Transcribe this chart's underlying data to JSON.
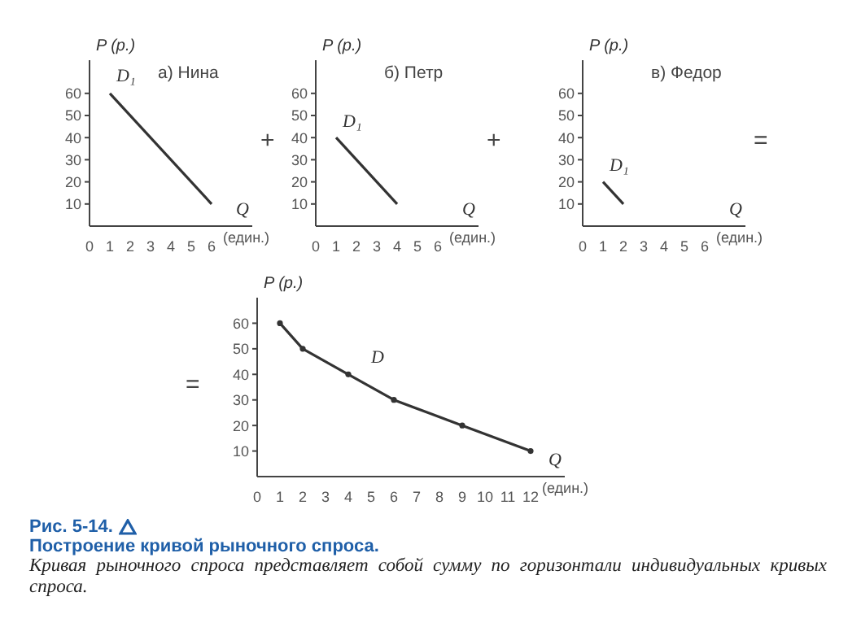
{
  "chart_data": [
    {
      "type": "line",
      "title": "а) Нина",
      "xlabel": "Q",
      "ylabel": "P (р.)",
      "x": [
        1,
        6
      ],
      "series": [
        {
          "name": "D₁",
          "color": "#333333",
          "values": [
            60,
            10
          ]
        }
      ],
      "xlim": [
        0,
        8
      ],
      "ylim": [
        0,
        75
      ],
      "xticks": [
        0,
        1,
        2,
        3,
        4,
        5,
        6
      ],
      "yticks": [
        10,
        20,
        30,
        40,
        50,
        60
      ],
      "annotations": [
        "(един.)",
        "+"
      ]
    },
    {
      "type": "line",
      "title": "б) Петр",
      "xlabel": "Q",
      "ylabel": "P (р.)",
      "x": [
        1,
        4
      ],
      "series": [
        {
          "name": "D₁",
          "color": "#333333",
          "values": [
            40,
            10
          ]
        }
      ],
      "xlim": [
        0,
        8
      ],
      "ylim": [
        0,
        75
      ],
      "xticks": [
        0,
        1,
        2,
        3,
        4,
        5,
        6
      ],
      "yticks": [
        10,
        20,
        30,
        40,
        50,
        60
      ],
      "annotations": [
        "(един.)",
        "+"
      ]
    },
    {
      "type": "line",
      "title": "в) Федор",
      "xlabel": "Q",
      "ylabel": "P (р.)",
      "x": [
        1,
        2
      ],
      "series": [
        {
          "name": "D₁",
          "color": "#333333",
          "values": [
            20,
            10
          ]
        }
      ],
      "xlim": [
        0,
        8
      ],
      "ylim": [
        0,
        75
      ],
      "xticks": [
        0,
        1,
        2,
        3,
        4,
        5,
        6
      ],
      "yticks": [
        10,
        20,
        30,
        40,
        50,
        60
      ],
      "annotations": [
        "(един.)",
        "="
      ]
    },
    {
      "type": "line",
      "xlabel": "Q",
      "ylabel": "P (р.)",
      "x": [
        1,
        2,
        4,
        6,
        9,
        12
      ],
      "marker": "circle",
      "series": [
        {
          "name": "D",
          "color": "#333333",
          "values": [
            60,
            50,
            40,
            30,
            20,
            10
          ]
        }
      ],
      "xlim": [
        0,
        13.5
      ],
      "ylim": [
        0,
        70
      ],
      "xticks": [
        0,
        1,
        2,
        3,
        4,
        5,
        6,
        7,
        8,
        9,
        10,
        11,
        12
      ],
      "yticks": [
        10,
        20,
        30,
        40,
        50,
        60
      ],
      "annotations": [
        "(един.)",
        "="
      ]
    },
    {
      "type": "other",
      "title": "Рис. 5-14.",
      "subtitle": "Построение кривой рыночного спроса.",
      "annotations": [
        "Кривая рыночного спроса представляет собой сумму по горизонтали индивидуальных кривых спроса."
      ]
    }
  ]
}
